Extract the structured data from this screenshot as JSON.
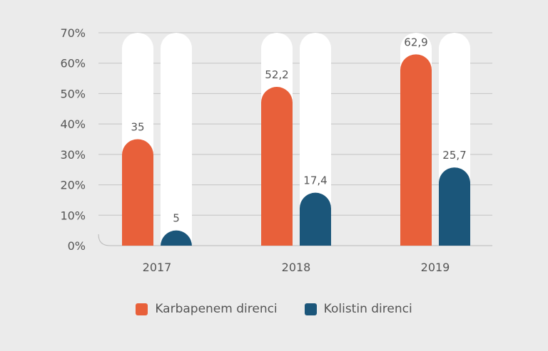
{
  "chart_data": {
    "type": "bar",
    "categories": [
      "2017",
      "2018",
      "2019"
    ],
    "series": [
      {
        "name": "Karbapenem direnci",
        "values": [
          35,
          52.2,
          62.9
        ],
        "labels": [
          "35",
          "52,2",
          "62,9"
        ],
        "color": "#e8603a"
      },
      {
        "name": "Kolistin direnci",
        "values": [
          5,
          17.4,
          25.7
        ],
        "labels": [
          "5",
          "17,4",
          "25,7"
        ],
        "color": "#1b567a"
      }
    ],
    "yticks": [
      "0%",
      "10%",
      "20%",
      "30%",
      "40%",
      "50%",
      "60%",
      "70%"
    ],
    "ylim": [
      0,
      70
    ],
    "grid": true,
    "legend_position": "bottom",
    "track_color": "#ffffff",
    "background": "#ebebeb"
  }
}
